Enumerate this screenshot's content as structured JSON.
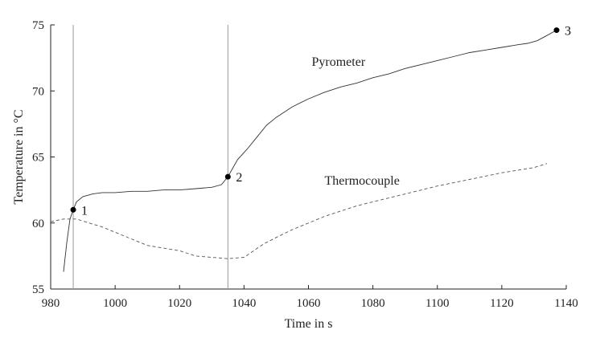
{
  "chart_data": {
    "type": "line",
    "xlabel": "Time in s",
    "ylabel": "Temperature in °C",
    "xlim": [
      980,
      1140
    ],
    "ylim": [
      55,
      75
    ],
    "xticks": [
      980,
      1000,
      1020,
      1040,
      1060,
      1080,
      1100,
      1120,
      1140
    ],
    "yticks": [
      55,
      60,
      65,
      70,
      75
    ],
    "grid": false,
    "vlines": [
      987,
      1035
    ],
    "series": [
      {
        "name": "Pyrometer",
        "style": "solid",
        "color": "#333333",
        "x": [
          984,
          985,
          986,
          987,
          988,
          990,
          993,
          996,
          1000,
          1005,
          1010,
          1015,
          1020,
          1025,
          1030,
          1033,
          1035,
          1038,
          1041,
          1044,
          1047,
          1050,
          1055,
          1060,
          1065,
          1070,
          1075,
          1080,
          1085,
          1090,
          1095,
          1100,
          1105,
          1110,
          1115,
          1120,
          1125,
          1128,
          1131,
          1134,
          1137
        ],
        "y": [
          56.3,
          58.5,
          60.3,
          61.0,
          61.6,
          62.0,
          62.2,
          62.3,
          62.3,
          62.4,
          62.4,
          62.5,
          62.5,
          62.6,
          62.7,
          62.9,
          63.5,
          64.8,
          65.6,
          66.5,
          67.4,
          68.0,
          68.8,
          69.4,
          69.9,
          70.3,
          70.6,
          71.0,
          71.3,
          71.7,
          72.0,
          72.3,
          72.6,
          72.9,
          73.1,
          73.3,
          73.5,
          73.6,
          73.8,
          74.2,
          74.6
        ]
      },
      {
        "name": "Thermocouple",
        "style": "dashed",
        "color": "#555555",
        "x": [
          980,
          984,
          988,
          992,
          996,
          1000,
          1005,
          1010,
          1015,
          1020,
          1025,
          1030,
          1035,
          1040,
          1043,
          1046,
          1050,
          1055,
          1060,
          1065,
          1070,
          1075,
          1080,
          1090,
          1100,
          1110,
          1120,
          1130,
          1134
        ],
        "y": [
          60.1,
          60.3,
          60.3,
          60.0,
          59.7,
          59.3,
          58.8,
          58.3,
          58.1,
          57.9,
          57.5,
          57.4,
          57.3,
          57.4,
          57.9,
          58.4,
          58.9,
          59.5,
          60.0,
          60.5,
          60.9,
          61.3,
          61.6,
          62.2,
          62.8,
          63.3,
          63.8,
          64.2,
          64.5
        ]
      }
    ],
    "points": [
      {
        "label": "1",
        "x": 987,
        "y": 61.0
      },
      {
        "label": "2",
        "x": 1035,
        "y": 63.5
      },
      {
        "label": "3",
        "x": 1137,
        "y": 74.6
      }
    ],
    "annotations": [
      {
        "text": "Pyrometer",
        "x": 1061,
        "y": 71.9
      },
      {
        "text": "Thermocouple",
        "x": 1065,
        "y": 62.9
      }
    ]
  }
}
